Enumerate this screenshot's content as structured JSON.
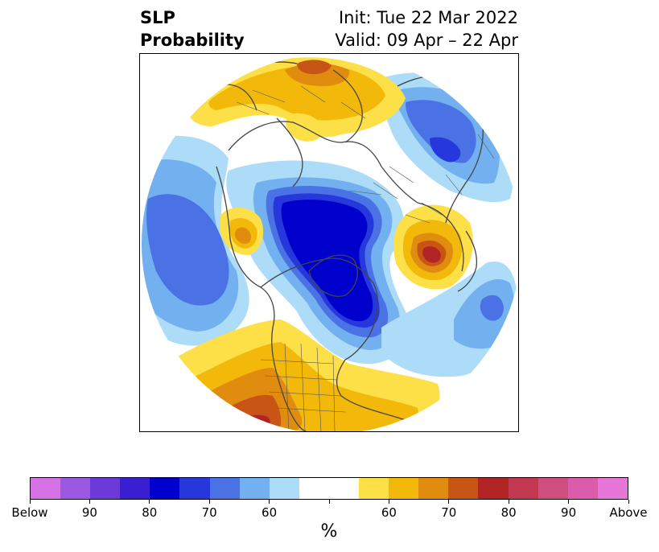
{
  "title": {
    "left_line1": "SLP",
    "left_line2": "Probability",
    "right_line1": "Init: Tue 22 Mar 2022",
    "right_line2": "Valid: 09 Apr – 22 Apr"
  },
  "colorbar": {
    "segments": [
      "#d472e6",
      "#9b58e0",
      "#6b3ad9",
      "#3a1ed2",
      "#0000cc",
      "#2638dc",
      "#4a72e4",
      "#73b0ef",
      "#acdcf8",
      "#ffffff",
      "#ffffff",
      "#fde047",
      "#f3b90a",
      "#e08c0e",
      "#c85516",
      "#b02424",
      "#c23850",
      "#cf4e80",
      "#db5cab",
      "#e676d8"
    ],
    "tick_labels": [
      "Below",
      "90",
      "80",
      "70",
      "60",
      "60",
      "70",
      "80",
      "90",
      "Above"
    ],
    "unit": "%"
  },
  "map": {
    "region": "Northern Hemisphere polar stereographic",
    "colors": {
      "below_60": "#acdcf8",
      "below_70": "#73b0ef",
      "below_80": "#4a72e4",
      "below_90": "#2638dc",
      "below_95": "#0000cc",
      "above_60": "#fde047",
      "above_70": "#f3b90a",
      "above_80": "#e08c0e",
      "above_90": "#c85516",
      "above_95": "#b02424"
    }
  }
}
